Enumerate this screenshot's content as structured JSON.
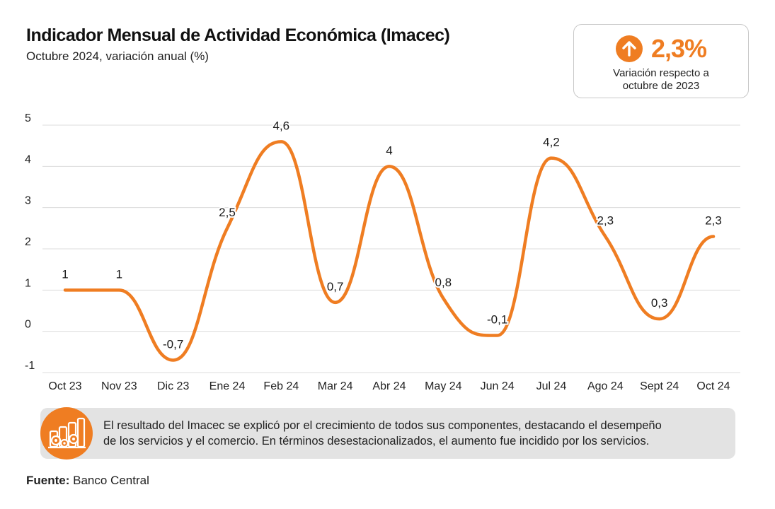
{
  "header": {
    "title": "Indicador Mensual de Actividad Económica (Imacec)",
    "subtitle": "Octubre 2024, variación anual (%)"
  },
  "kpi": {
    "value": "2,3%",
    "label_line1": "Variación respecto a",
    "label_line2": "octubre de 2023",
    "icon": "arrow-up-icon",
    "accent_color": "#ef7d22"
  },
  "chart_data": {
    "type": "line",
    "categories": [
      "Oct 23",
      "Nov 23",
      "Dic 23",
      "Ene 24",
      "Feb 24",
      "Mar 24",
      "Abr 24",
      "May 24",
      "Jun 24",
      "Jul 24",
      "Ago 24",
      "Sept 24",
      "Oct 24"
    ],
    "values": [
      1,
      1,
      -0.7,
      2.5,
      4.6,
      0.7,
      4,
      0.8,
      -0.1,
      4.2,
      2.3,
      0.3,
      2.3
    ],
    "data_labels": [
      "1",
      "1",
      "-0,7",
      "2,5",
      "4,6",
      "0,7",
      "4",
      "0,8",
      "-0,1",
      "4,2",
      "2,3",
      "0,3",
      "2,3"
    ],
    "y_ticks": [
      "-1",
      "0",
      "1",
      "2",
      "3",
      "4",
      "5"
    ],
    "ylim": [
      -1,
      5
    ],
    "grid": true,
    "line_color": "#ef7d22",
    "title": "",
    "xlabel": "",
    "ylabel": ""
  },
  "note": {
    "icon": "industry-gears-icon",
    "text_line1": "El resultado del Imacec se explicó por el crecimiento de todos sus componentes, destacando el desempeño",
    "text_line2": "de los servicios y el comercio. En términos desestacionalizados, el aumento fue incidido por los servicios."
  },
  "footer": {
    "source_label": "Fuente:",
    "source_value": "Banco Central"
  }
}
